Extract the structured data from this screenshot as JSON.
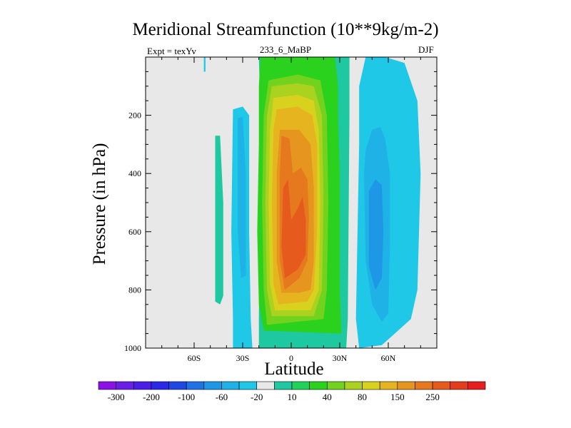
{
  "chart_data": {
    "type": "heatmap",
    "title": "Meridional Streamfunction (10**9kg/m-2)",
    "left_string": "Expt = texYv",
    "center_string": "233_6_MaBP",
    "right_string": "DJF",
    "xlabel": "Latitude",
    "ylabel": "Pressure (in hPa)",
    "xlim": [
      -90,
      90
    ],
    "ylim": [
      1000,
      0
    ],
    "x_ticks": [
      {
        "value": -60,
        "label": "60S"
      },
      {
        "value": -30,
        "label": "30S"
      },
      {
        "value": 0,
        "label": "0"
      },
      {
        "value": 30,
        "label": "30N"
      },
      {
        "value": 60,
        "label": "60N"
      }
    ],
    "y_ticks": [
      {
        "value": 200,
        "label": "200"
      },
      {
        "value": 400,
        "label": "400"
      },
      {
        "value": 600,
        "label": "600"
      },
      {
        "value": 800,
        "label": "800"
      },
      {
        "value": 1000,
        "label": "1000"
      }
    ],
    "background_color": "#e8e8e8",
    "colorbar": {
      "colors": [
        "#8b12e6",
        "#6a1ee6",
        "#4a1ee6",
        "#2a2ae6",
        "#1e48e6",
        "#1e72e6",
        "#1e98e6",
        "#1eb2e6",
        "#1ec8e6",
        "#e8e8e8",
        "#1ec8a0",
        "#1ed25a",
        "#2ad21e",
        "#72d21e",
        "#aad21e",
        "#d8d21e",
        "#e6b41e",
        "#e6961e",
        "#e6781e",
        "#e65a1e",
        "#e63c1e",
        "#e61e1e"
      ],
      "labels": [
        {
          "after_box": 1,
          "text": "-300"
        },
        {
          "after_box": 3,
          "text": "-200"
        },
        {
          "after_box": 5,
          "text": "-100"
        },
        {
          "after_box": 7,
          "text": "-60"
        },
        {
          "after_box": 9,
          "text": "-20"
        },
        {
          "after_box": 11,
          "text": "10"
        },
        {
          "after_box": 13,
          "text": "40"
        },
        {
          "after_box": 15,
          "text": "80"
        },
        {
          "after_box": 17,
          "text": "150"
        },
        {
          "after_box": 19,
          "text": "250"
        }
      ]
    },
    "regions": [
      {
        "name": "sh-small-cell-outer",
        "level": -20,
        "color": "#1ec8a0",
        "points": [
          [
            -47,
            270
          ],
          [
            -44,
            270
          ],
          [
            -42,
            500
          ],
          [
            -42,
            820
          ],
          [
            -44,
            850
          ],
          [
            -47,
            840
          ],
          [
            -47,
            500
          ]
        ]
      },
      {
        "name": "sh-cell-outer",
        "level": -20,
        "color": "#1ec8e6",
        "points": [
          [
            -36,
            180
          ],
          [
            -30,
            170
          ],
          [
            -26,
            200
          ],
          [
            -26,
            600
          ],
          [
            -25,
            900
          ],
          [
            -24,
            1000
          ],
          [
            -36,
            1000
          ],
          [
            -36,
            900
          ],
          [
            -37,
            600
          ]
        ]
      },
      {
        "name": "sh-cell-inner",
        "level": -60,
        "color": "#1eb2e6",
        "points": [
          [
            -33,
            210
          ],
          [
            -30,
            205
          ],
          [
            -28,
            400
          ],
          [
            -28,
            750
          ],
          [
            -31,
            760
          ],
          [
            -33,
            600
          ]
        ]
      },
      {
        "name": "top-speck",
        "level": -20,
        "color": "#1ec8e6",
        "points": [
          [
            -54,
            0
          ],
          [
            -53,
            0
          ],
          [
            -53,
            50
          ],
          [
            -54,
            50
          ]
        ]
      },
      {
        "name": "nh-cell-outer",
        "level": -20,
        "color": "#1ec8e6",
        "points": [
          [
            46,
            0
          ],
          [
            58,
            0
          ],
          [
            70,
            20
          ],
          [
            78,
            150
          ],
          [
            80,
            400
          ],
          [
            78,
            800
          ],
          [
            74,
            900
          ],
          [
            64,
            950
          ],
          [
            56,
            990
          ],
          [
            42,
            1000
          ],
          [
            40,
            900
          ],
          [
            41,
            600
          ],
          [
            42,
            300
          ],
          [
            42,
            100
          ]
        ]
      },
      {
        "name": "nh-cell-mid",
        "level": -60,
        "color": "#1eb2e6",
        "points": [
          [
            46,
            320
          ],
          [
            50,
            250
          ],
          [
            55,
            240
          ],
          [
            58,
            280
          ],
          [
            61,
            400
          ],
          [
            61,
            650
          ],
          [
            60,
            880
          ],
          [
            56,
            910
          ],
          [
            50,
            850
          ],
          [
            46,
            700
          ],
          [
            45,
            400
          ]
        ]
      },
      {
        "name": "nh-cell-inner",
        "level": -100,
        "color": "#1e98e6",
        "points": [
          [
            48,
            460
          ],
          [
            52,
            420
          ],
          [
            56,
            440
          ],
          [
            57,
            600
          ],
          [
            56,
            760
          ],
          [
            52,
            800
          ],
          [
            48,
            720
          ]
        ]
      },
      {
        "name": "hadley-10",
        "level": 10,
        "color": "#1ec8a0",
        "points": [
          [
            -20,
            0
          ],
          [
            36,
            0
          ],
          [
            36,
            200
          ],
          [
            35,
            900
          ],
          [
            34,
            1000
          ],
          [
            -20,
            1000
          ],
          [
            -20,
            900
          ],
          [
            -19,
            200
          ]
        ]
      },
      {
        "name": "hadley-20",
        "level": 20,
        "color": "#2ad21e",
        "points": [
          [
            -19,
            0
          ],
          [
            27,
            0
          ],
          [
            29,
            100
          ],
          [
            29,
            200
          ],
          [
            30,
            400
          ],
          [
            30,
            800
          ],
          [
            31,
            950
          ],
          [
            -17,
            940
          ],
          [
            -20,
            850
          ],
          [
            -21,
            600
          ],
          [
            -20,
            300
          ],
          [
            -20,
            100
          ]
        ]
      },
      {
        "name": "hadley-40",
        "level": 40,
        "color": "#72d21e",
        "points": [
          [
            -14,
            80
          ],
          [
            4,
            60
          ],
          [
            18,
            80
          ],
          [
            22,
            200
          ],
          [
            23,
            500
          ],
          [
            22,
            800
          ],
          [
            20,
            900
          ],
          [
            -15,
            920
          ],
          [
            -17,
            800
          ],
          [
            -18,
            500
          ],
          [
            -17,
            200
          ]
        ]
      },
      {
        "name": "hadley-60",
        "level": 60,
        "color": "#aad21e",
        "points": [
          [
            -12,
            100
          ],
          [
            4,
            90
          ],
          [
            14,
            100
          ],
          [
            19,
            200
          ],
          [
            20,
            500
          ],
          [
            19,
            800
          ],
          [
            14,
            890
          ],
          [
            -12,
            890
          ],
          [
            -15,
            800
          ],
          [
            -16,
            500
          ],
          [
            -15,
            200
          ]
        ]
      },
      {
        "name": "hadley-80",
        "level": 80,
        "color": "#d8d21e",
        "points": [
          [
            -11,
            140
          ],
          [
            4,
            130
          ],
          [
            14,
            150
          ],
          [
            17,
            250
          ],
          [
            18,
            500
          ],
          [
            17,
            800
          ],
          [
            12,
            870
          ],
          [
            -10,
            870
          ],
          [
            -13,
            780
          ],
          [
            -14,
            500
          ],
          [
            -13,
            250
          ]
        ]
      },
      {
        "name": "hadley-100",
        "level": 100,
        "color": "#e6b41e",
        "points": [
          [
            -9,
            180
          ],
          [
            4,
            170
          ],
          [
            13,
            200
          ],
          [
            16,
            300
          ],
          [
            16,
            600
          ],
          [
            14,
            800
          ],
          [
            10,
            840
          ],
          [
            -8,
            850
          ],
          [
            -11,
            780
          ],
          [
            -12,
            500
          ],
          [
            -11,
            250
          ]
        ]
      },
      {
        "name": "hadley-150",
        "level": 150,
        "color": "#e6961e",
        "points": [
          [
            -7,
            250
          ],
          [
            5,
            250
          ],
          [
            12,
            300
          ],
          [
            14,
            450
          ],
          [
            14,
            700
          ],
          [
            12,
            800
          ],
          [
            5,
            810
          ],
          [
            -6,
            810
          ],
          [
            -9,
            700
          ],
          [
            -9,
            400
          ]
        ]
      },
      {
        "name": "hadley-200",
        "level": 200,
        "color": "#e6781e",
        "points": [
          [
            -6,
            270
          ],
          [
            -1,
            280
          ],
          [
            1,
            400
          ],
          [
            6,
            380
          ],
          [
            10,
            420
          ],
          [
            11,
            550
          ],
          [
            10,
            700
          ],
          [
            5,
            760
          ],
          [
            -4,
            800
          ],
          [
            -7,
            700
          ],
          [
            -7,
            400
          ]
        ]
      },
      {
        "name": "hadley-250",
        "level": 250,
        "color": "#e65a1e",
        "points": [
          [
            -5,
            450
          ],
          [
            -2,
            420
          ],
          [
            0,
            560
          ],
          [
            4,
            520
          ],
          [
            7,
            480
          ],
          [
            9,
            560
          ],
          [
            9,
            680
          ],
          [
            4,
            730
          ],
          [
            -4,
            760
          ],
          [
            -6,
            650
          ]
        ]
      }
    ]
  }
}
